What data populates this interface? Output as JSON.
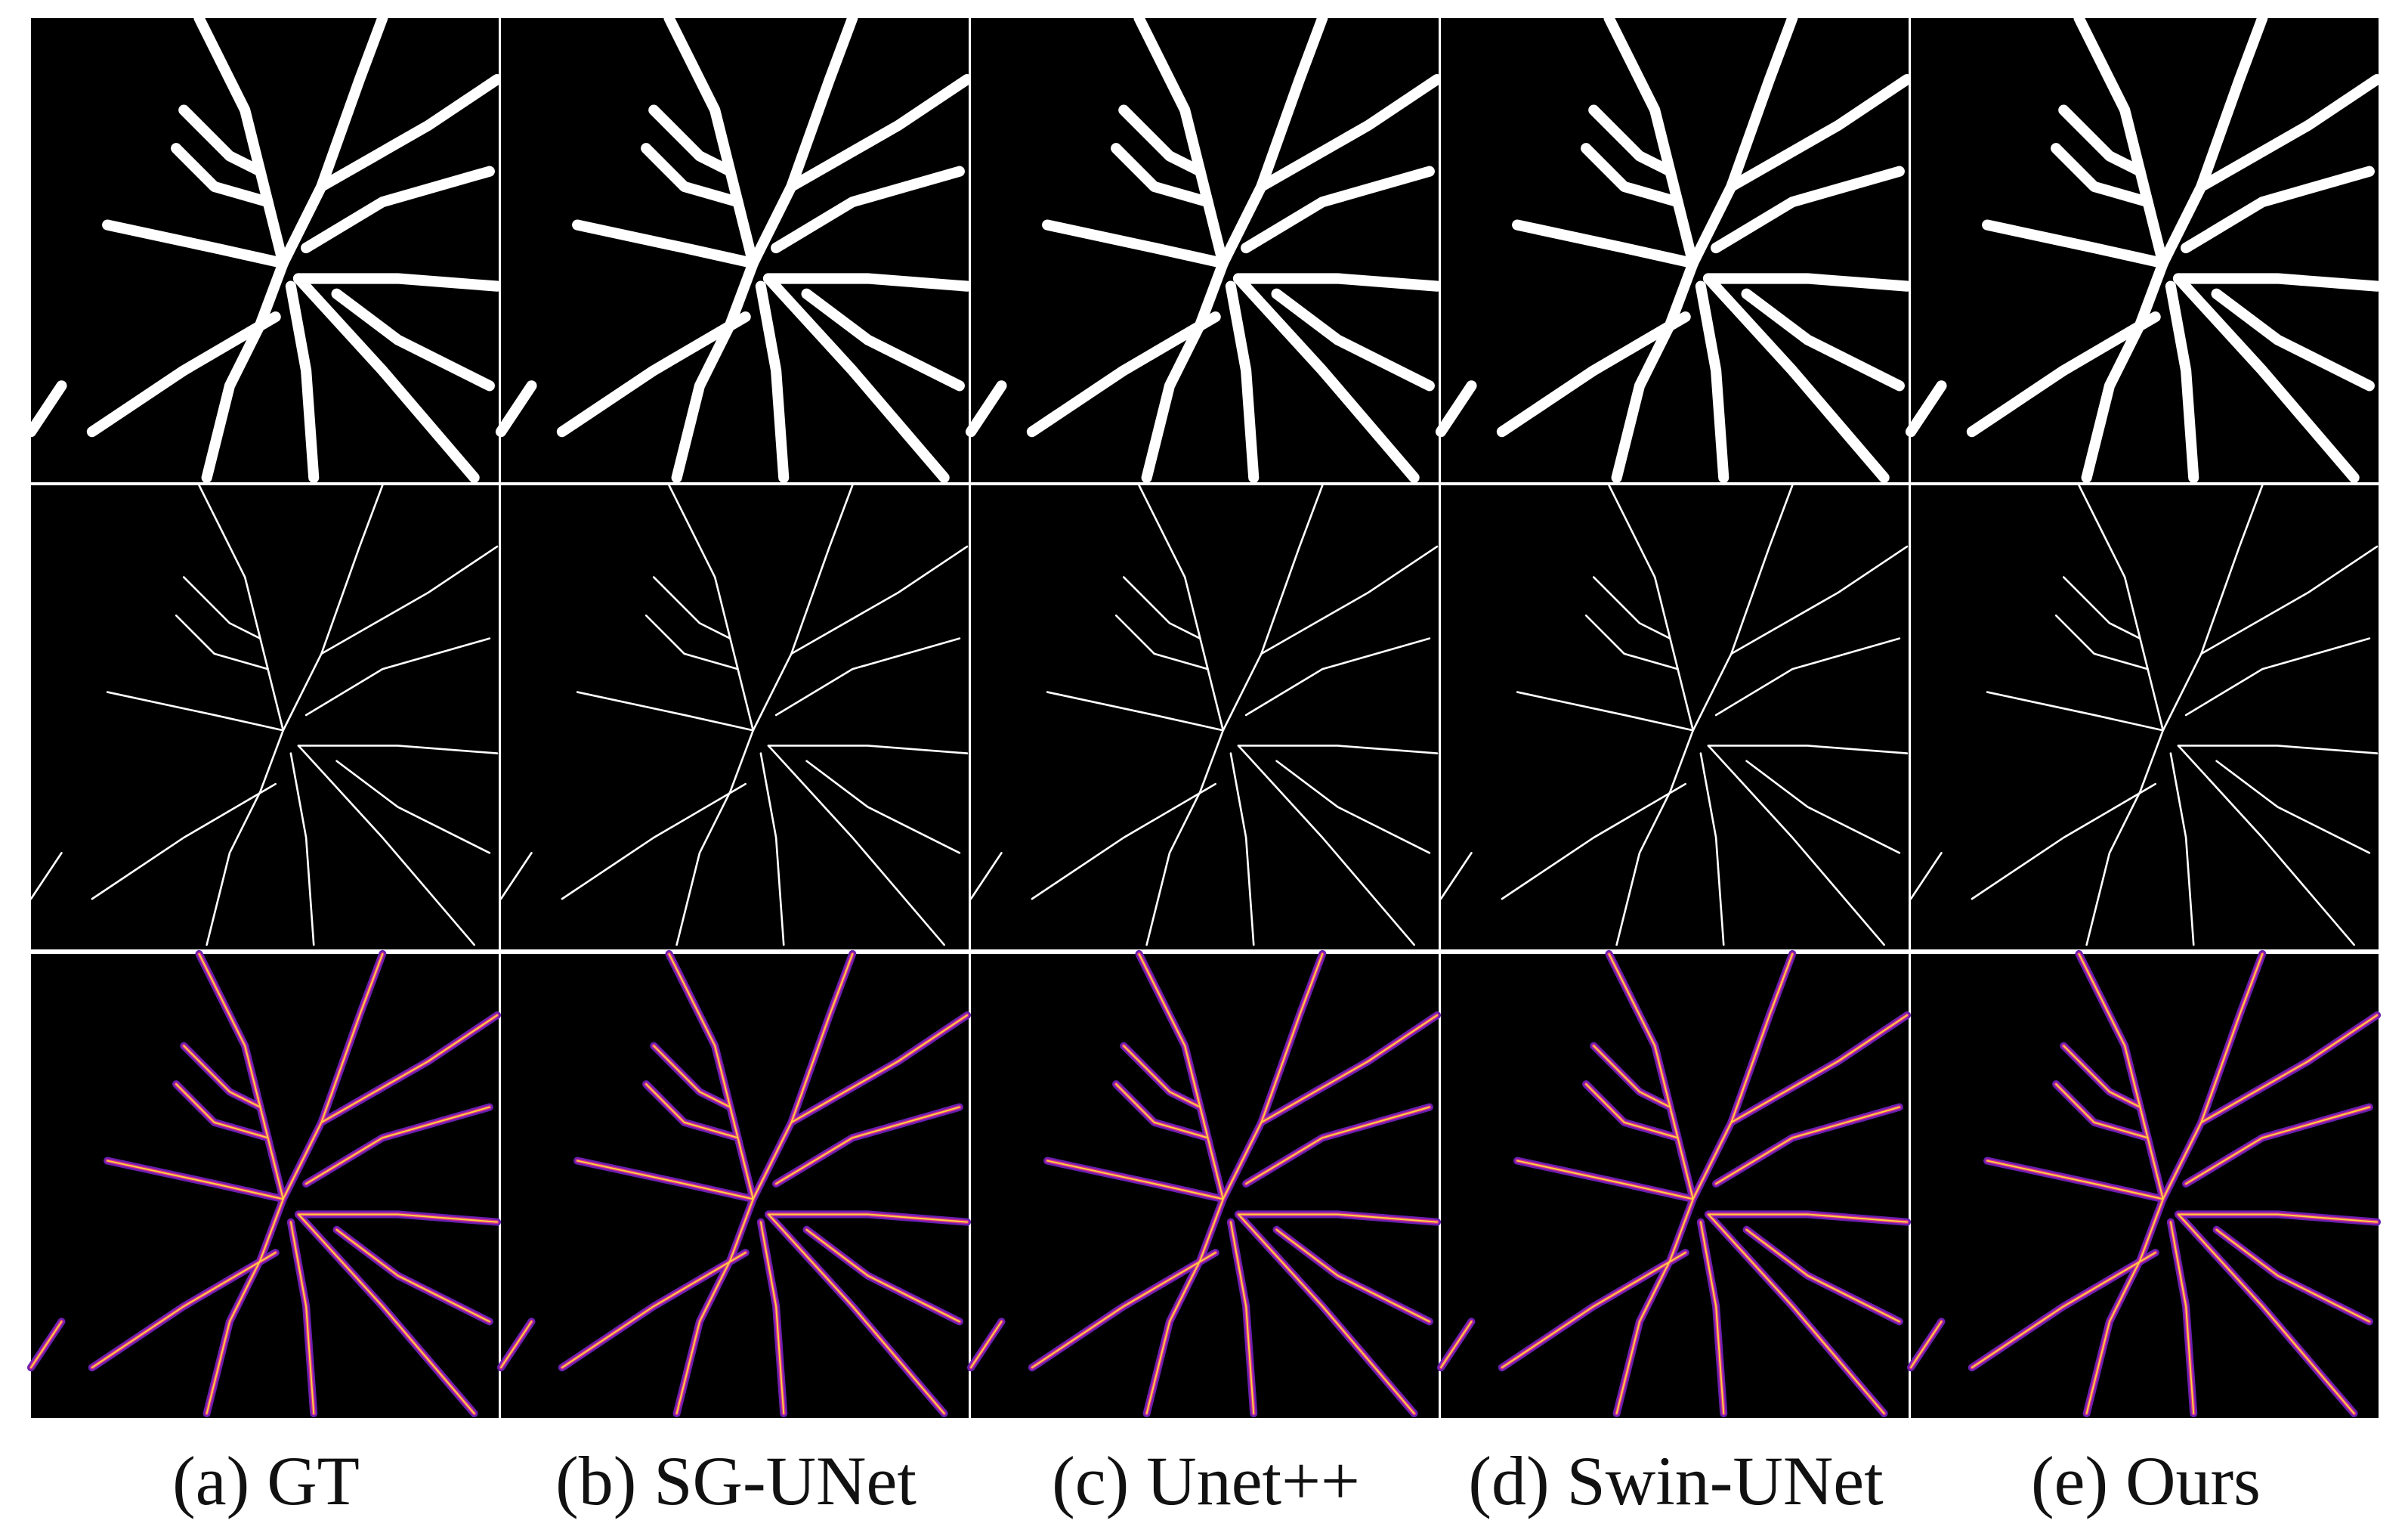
{
  "captions": [
    "(a) GT",
    "(b) SG-UNet",
    "(c) Unet++",
    "(d) Swin-UNet",
    "(e) Ours"
  ]
}
